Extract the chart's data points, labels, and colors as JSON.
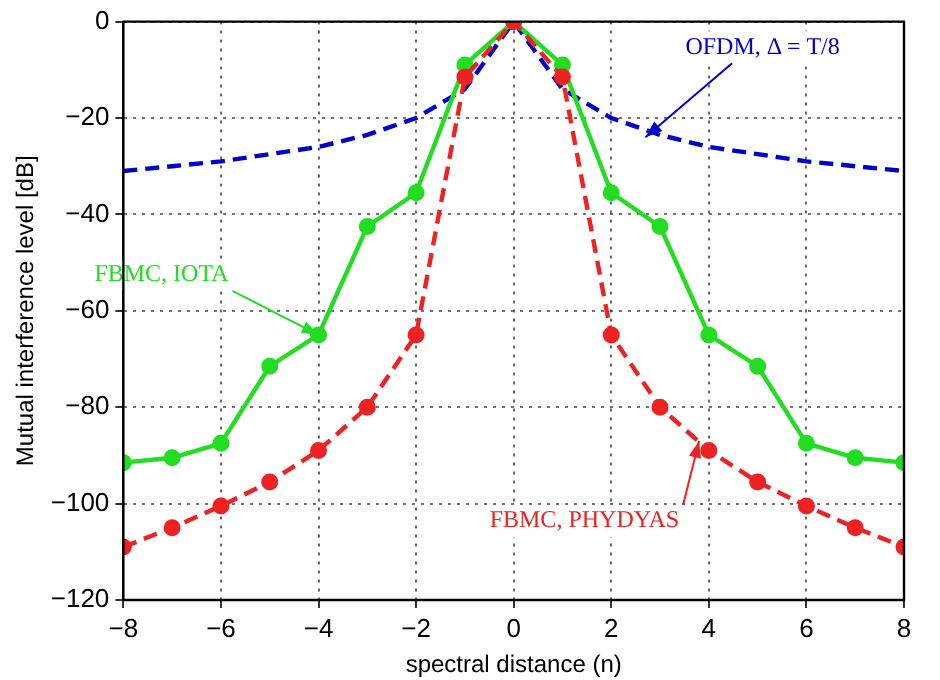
{
  "chart_data": {
    "type": "line",
    "xlabel": "spectral distance (n)",
    "ylabel": "Mutual interference level [dB]",
    "x": [
      -8,
      -7,
      -6,
      -5,
      -4,
      -3,
      -2,
      -1,
      0,
      1,
      2,
      3,
      4,
      5,
      6,
      7,
      8
    ],
    "series": [
      {
        "color": "#0000cc",
        "line_style": "dashed",
        "marker": "none",
        "values": [
          -31,
          -30,
          -29,
          -27.5,
          -26,
          -23.5,
          -20,
          -14,
          0,
          -14,
          -20,
          -23.5,
          -26,
          -27.5,
          -29,
          -30,
          -31
        ]
      },
      {
        "color": "#22dd22",
        "line_style": "solid",
        "marker": "circle",
        "values": [
          -91.5,
          -90.5,
          -87.5,
          -71.5,
          -65,
          -42.5,
          -35.5,
          -9,
          0,
          -9,
          -35.5,
          -42.5,
          -65,
          -71.5,
          -87.5,
          -90.5,
          -91.5
        ]
      },
      {
        "color": "#ee2222",
        "line_style": "dashed",
        "marker": "circle",
        "values": [
          -109,
          -105,
          -100.5,
          -95.5,
          -89,
          -80,
          -65,
          -11.5,
          0,
          -11.5,
          -65,
          -80,
          -89,
          -95.5,
          -100.5,
          -105,
          -109
        ]
      }
    ],
    "xlim": [
      -8,
      8
    ],
    "xticks": [
      -8,
      -6,
      -4,
      -2,
      0,
      2,
      4,
      6,
      8
    ],
    "ylim": [
      -120,
      0
    ],
    "yticks": [
      -120,
      -100,
      -80,
      -60,
      -40,
      -20,
      0
    ],
    "grid": true,
    "legend": false,
    "annotations": [
      {
        "text": "OFDM, Δ = T/8",
        "x": 2.7,
        "y": -24
      },
      {
        "text": "FBMC, IOTA",
        "x": -4,
        "y": -65
      },
      {
        "text": "FBMC, PHYDYAS",
        "x": 3.8,
        "y": -87
      }
    ]
  }
}
